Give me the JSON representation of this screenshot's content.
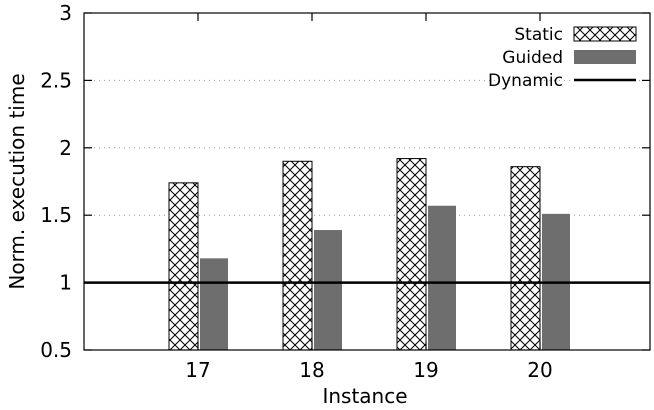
{
  "chart_data": {
    "type": "bar",
    "title": "",
    "xlabel": "Instance",
    "ylabel": "Norm. execution time",
    "categories": [
      "17",
      "18",
      "19",
      "20"
    ],
    "series": [
      {
        "name": "Static",
        "values": [
          1.74,
          1.9,
          1.92,
          1.86
        ],
        "fill": "crosshatch",
        "color": "#000000"
      },
      {
        "name": "Guided",
        "values": [
          1.18,
          1.39,
          1.57,
          1.51
        ],
        "fill": "solid",
        "color": "#6e6e6e"
      }
    ],
    "reference_lines": [
      {
        "name": "Dynamic",
        "value": 1.0,
        "color": "#000000"
      }
    ],
    "ylim": [
      0.5,
      3
    ],
    "yticks": [
      "0.5",
      "1",
      "1.5",
      "2",
      "2.5",
      "3"
    ],
    "grid": "horizontal dotted",
    "legend_position": "top-right"
  }
}
